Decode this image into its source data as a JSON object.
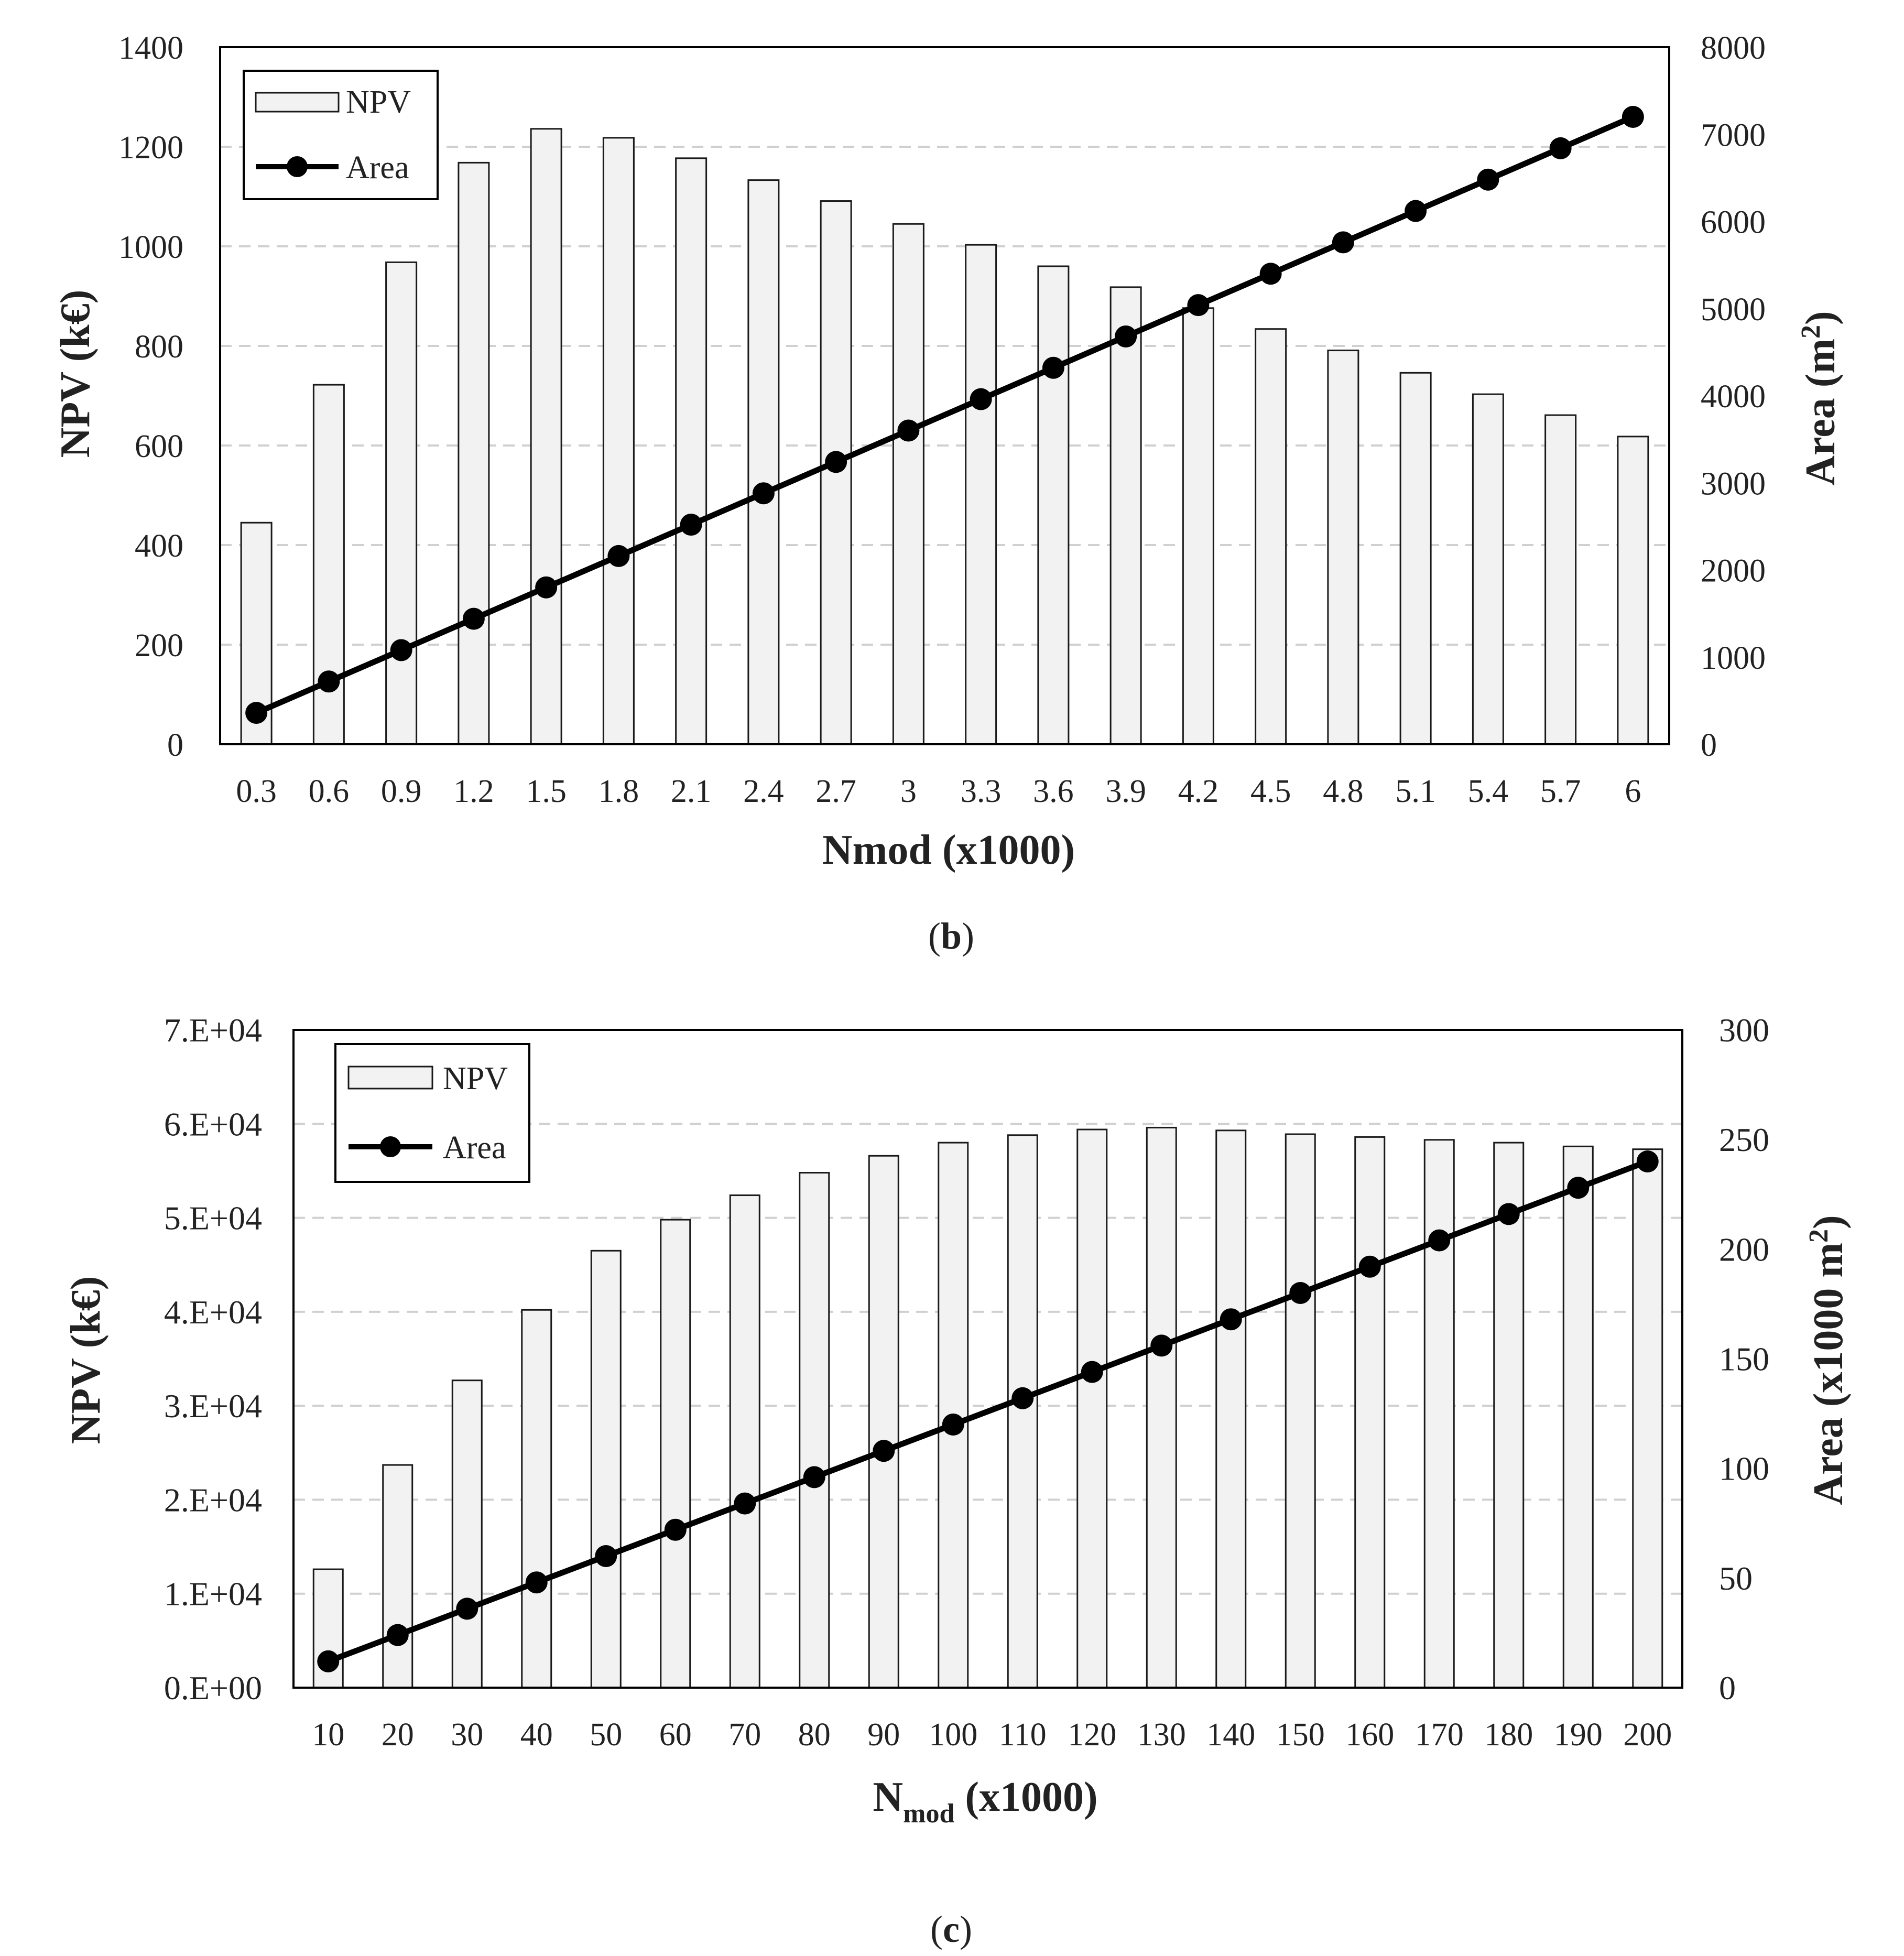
{
  "colors": {
    "bar_fill": "#f2f2f2",
    "bar_stroke": "#1a1a1a",
    "line": "#000000",
    "grid": "#d0d0d0",
    "text": "#222222"
  },
  "chart_data": [
    {
      "id": "b",
      "type": "bar+line",
      "caption": {
        "open": "(",
        "letter": "b",
        "close": ")"
      },
      "categories": [
        "0.3",
        "0.6",
        "0.9",
        "1.2",
        "1.5",
        "1.8",
        "2.1",
        "2.4",
        "2.7",
        "3",
        "3.3",
        "3.6",
        "3.9",
        "4.2",
        "4.5",
        "4.8",
        "5.1",
        "5.4",
        "5.7",
        "6"
      ],
      "series": [
        {
          "name": "NPV",
          "type": "bar",
          "axis": "left",
          "values": [
            445,
            722,
            968,
            1168,
            1236,
            1218,
            1177,
            1133,
            1091,
            1045,
            1003,
            960,
            918,
            876,
            834,
            791,
            746,
            703,
            661,
            618
          ]
        },
        {
          "name": "Area",
          "type": "line",
          "axis": "right",
          "values": [
            360,
            720,
            1080,
            1440,
            1800,
            2160,
            2520,
            2880,
            3240,
            3600,
            3960,
            4320,
            4680,
            5040,
            5400,
            5760,
            6120,
            6480,
            6840,
            7200
          ]
        }
      ],
      "xlabel": "Nmod (x1000)",
      "ylabel": "NPV (k€)",
      "y2label_main": "Area (m",
      "y2label_sup": "2",
      "y2label_end": ")",
      "ylim": [
        0,
        1400
      ],
      "y2lim": [
        0,
        8000
      ],
      "yticks": [
        "0",
        "200",
        "400",
        "600",
        "800",
        "1000",
        "1200",
        "1400"
      ],
      "y2ticks": [
        "0",
        "1000",
        "2000",
        "3000",
        "4000",
        "5000",
        "6000",
        "7000",
        "8000"
      ],
      "legend": [
        "NPV",
        "Area"
      ],
      "legend_position": "top-left",
      "grid": true
    },
    {
      "id": "c",
      "type": "bar+line",
      "caption": {
        "open": "(",
        "letter": "c",
        "close": ")"
      },
      "categories": [
        "10",
        "20",
        "30",
        "40",
        "50",
        "60",
        "70",
        "80",
        "90",
        "100",
        "110",
        "120",
        "130",
        "140",
        "150",
        "160",
        "170",
        "180",
        "190",
        "200"
      ],
      "series": [
        {
          "name": "NPV",
          "type": "bar",
          "axis": "left",
          "values": [
            12600,
            23700,
            32700,
            40200,
            46500,
            49800,
            52400,
            54800,
            56600,
            58000,
            58800,
            59400,
            59600,
            59300,
            58900,
            58600,
            58300,
            58000,
            57600,
            57300
          ]
        },
        {
          "name": "Area",
          "type": "line",
          "axis": "right",
          "values": [
            12,
            24,
            36,
            48,
            60,
            72,
            84,
            96,
            108,
            120,
            132,
            144,
            156,
            168,
            180,
            192,
            204,
            216,
            228,
            240
          ]
        }
      ],
      "xlabel_main": "N",
      "xlabel_sub": "mod",
      "xlabel_end": " (x1000)",
      "ylabel": "NPV (k€)",
      "y2label_main": "Area (x1000 m",
      "y2label_sup": "2",
      "y2label_end": ")",
      "ylim": [
        0,
        70000
      ],
      "y2lim": [
        0,
        300
      ],
      "yticks": [
        "0.E+00",
        "1.E+04",
        "2.E+04",
        "3.E+04",
        "4.E+04",
        "5.E+04",
        "6.E+04",
        "7.E+04"
      ],
      "y2ticks": [
        "0",
        "50",
        "100",
        "150",
        "200",
        "250",
        "300"
      ],
      "legend": [
        "NPV",
        "Area"
      ],
      "legend_position": "top-left",
      "grid": true
    }
  ]
}
